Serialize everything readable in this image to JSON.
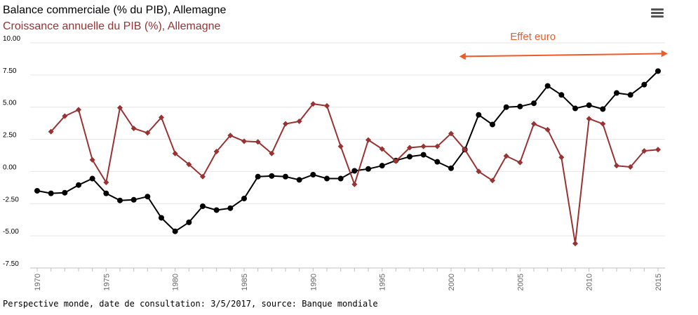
{
  "header": {
    "series1_title": "Balance commerciale (% du PIB), Allemagne",
    "series2_title": "Croissance annuelle du PIB (%), Allemagne",
    "menu_icon": "hamburger-menu-icon"
  },
  "footer": {
    "source": "Perspective monde, date de consultation: 3/5/2017, source: Banque mondiale"
  },
  "colors": {
    "series1": "#000000",
    "series2": "#993333",
    "annotation": "#f05a28",
    "grid": "#e6e6e6"
  },
  "chart_data": {
    "type": "line",
    "x": [
      1970,
      1971,
      1972,
      1973,
      1974,
      1975,
      1976,
      1977,
      1978,
      1979,
      1980,
      1981,
      1982,
      1983,
      1984,
      1985,
      1986,
      1987,
      1988,
      1989,
      1990,
      1991,
      1992,
      1993,
      1994,
      1995,
      1996,
      1997,
      1998,
      1999,
      2000,
      2001,
      2002,
      2003,
      2004,
      2005,
      2006,
      2007,
      2008,
      2009,
      2010,
      2011,
      2012,
      2013,
      2014,
      2015
    ],
    "ylim": [
      -7.5,
      10
    ],
    "yticks": [
      -7.5,
      -5,
      -2.5,
      0,
      2.5,
      5,
      7.5,
      10
    ],
    "ytick_labels": [
      "-7.50",
      "-5.00",
      "-2.50",
      "0.00",
      "2.50",
      "5.00",
      "7.50",
      "10.00"
    ],
    "xticks": [
      1970,
      1975,
      1980,
      1985,
      1990,
      1995,
      2000,
      2005,
      2010,
      2015
    ],
    "xtick_labels": [
      "1970",
      "1975",
      "1980",
      "1985",
      "1990",
      "1995",
      "2000",
      "2005",
      "2010",
      "2015"
    ],
    "grid": true,
    "series": [
      {
        "name": "Balance commerciale (% du PIB), Allemagne",
        "marker": "circle",
        "values": [
          -1.5,
          -1.7,
          -1.65,
          -1.05,
          -0.55,
          -1.7,
          -2.25,
          -2.2,
          -1.95,
          -3.6,
          -4.65,
          -3.95,
          -2.7,
          -3.0,
          -2.85,
          -2.1,
          -0.4,
          -0.35,
          -0.4,
          -0.65,
          -0.25,
          -0.55,
          -0.55,
          0.05,
          0.2,
          0.45,
          0.85,
          1.15,
          1.3,
          0.75,
          0.25,
          1.7,
          4.4,
          3.65,
          5.0,
          5.05,
          5.3,
          6.65,
          5.95,
          4.9,
          5.15,
          4.85,
          6.1,
          5.95,
          6.75,
          7.8
        ]
      },
      {
        "name": "Croissance annuelle du PIB (%), Allemagne",
        "marker": "diamond",
        "values": [
          null,
          3.1,
          4.3,
          4.8,
          0.9,
          -0.85,
          4.95,
          3.35,
          3.0,
          4.2,
          1.4,
          0.55,
          -0.4,
          1.55,
          2.8,
          2.35,
          2.3,
          1.4,
          3.7,
          3.9,
          5.25,
          5.1,
          1.95,
          -1.0,
          2.45,
          1.75,
          0.8,
          1.85,
          1.95,
          1.95,
          2.95,
          1.7,
          0.0,
          -0.7,
          1.2,
          0.7,
          3.7,
          3.25,
          1.1,
          -5.6,
          4.1,
          3.7,
          0.45,
          0.35,
          1.6,
          1.7
        ]
      }
    ],
    "annotation": {
      "text": "Effet euro",
      "x_start": 2000.6,
      "x_end": 2015.7,
      "y": 9.05
    }
  }
}
